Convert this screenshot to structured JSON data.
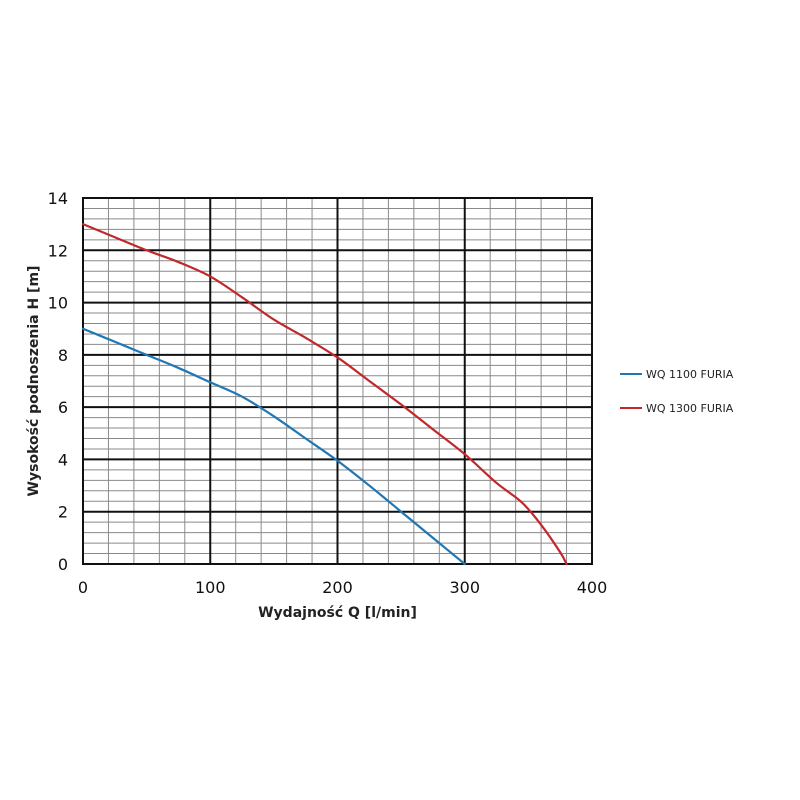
{
  "chart_data": {
    "type": "line",
    "title": "",
    "xlabel": "Wydajność Q [l/min]",
    "ylabel": "Wysokość podnoszenia H [m]",
    "xlim": [
      0,
      400
    ],
    "ylim": [
      0,
      14
    ],
    "x_ticks": [
      "0",
      "100",
      "200",
      "300",
      "400"
    ],
    "y_ticks": [
      "0",
      "2",
      "4",
      "6",
      "8",
      "10",
      "12",
      "14"
    ],
    "major_x_step": 100,
    "minor_x_step": 20,
    "major_y_step": 2,
    "minor_y_step": 0.4,
    "grid": true,
    "legend_position": "right",
    "series": [
      {
        "name": "WQ 1100 FURIA",
        "color": "#1f77b4",
        "x": [
          0,
          25,
          50,
          75,
          100,
          125,
          150,
          175,
          200,
          225,
          250,
          275,
          300
        ],
        "y": [
          9.0,
          8.5,
          8.0,
          7.5,
          6.95,
          6.4,
          5.65,
          4.8,
          3.95,
          3.0,
          2.0,
          1.0,
          0.0
        ]
      },
      {
        "name": "WQ 1300 FURIA",
        "color": "#c0282c",
        "x": [
          0,
          25,
          50,
          75,
          100,
          125,
          150,
          175,
          200,
          225,
          250,
          275,
          300,
          325,
          345,
          360,
          375,
          380
        ],
        "y": [
          13.0,
          12.5,
          12.0,
          11.55,
          11.0,
          10.2,
          9.35,
          8.65,
          7.9,
          7.0,
          6.1,
          5.15,
          4.2,
          3.1,
          2.35,
          1.5,
          0.45,
          0.0
        ]
      }
    ]
  }
}
